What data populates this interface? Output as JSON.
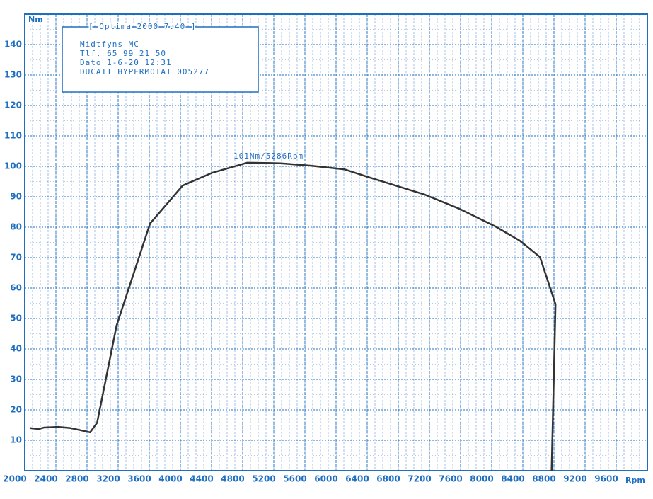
{
  "chart_data": {
    "type": "line",
    "x_label": "Rpm",
    "y_label": "Nm",
    "xlim": [
      2000,
      10000
    ],
    "ylim": [
      0,
      150
    ],
    "xticks": [
      2000,
      2400,
      2800,
      3200,
      3600,
      4000,
      4400,
      4800,
      5200,
      5600,
      6000,
      6400,
      6800,
      7200,
      7600,
      8000,
      8400,
      8800,
      9200,
      9600
    ],
    "yticks": [
      10,
      20,
      30,
      40,
      50,
      60,
      70,
      80,
      90,
      100,
      110,
      120,
      130,
      140
    ],
    "grid": true,
    "axis_color": "#1f6fc0",
    "info_box": {
      "title": "[ Optima 2000 7.40 ]",
      "lines": [
        "Midtfyns MC",
        "Tlf. 65 99 21 50",
        "Dato 1-6-20  12:31",
        "DUCATI HYPERMOTAT 005277"
      ]
    },
    "annotation": "101Nm/5286Rpm",
    "series": [
      {
        "color": "#333333",
        "x": [
          2070,
          2180,
          2250,
          2430,
          2590,
          2680,
          2840,
          2930,
          3180,
          3610,
          4030,
          4410,
          4860,
          5290,
          5680,
          6110,
          6410,
          7140,
          7590,
          8050,
          8360,
          8620,
          8820,
          8770
        ],
        "values": [
          14,
          13.7,
          14.2,
          14.4,
          14,
          13.5,
          12.6,
          15.8,
          47.7,
          81.2,
          93.7,
          97.9,
          101.2,
          101,
          100.2,
          99,
          96.5,
          90.7,
          86,
          80.2,
          75.6,
          70.2,
          54.7,
          0
        ]
      }
    ]
  }
}
